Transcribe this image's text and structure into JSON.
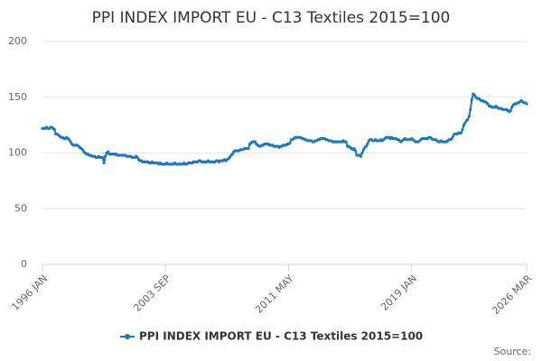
{
  "chart_data": {
    "type": "line",
    "title": "PPI INDEX IMPORT EU - C13 Textiles 2015=100",
    "source": "Source:",
    "categories": [
      "1996 JAN",
      null,
      null,
      null,
      null,
      null,
      null,
      null,
      null,
      null,
      null,
      null,
      null,
      null,
      null,
      null,
      null,
      null,
      null,
      null,
      null,
      null,
      null,
      null,
      null,
      null,
      null,
      null,
      null,
      null,
      null,
      null,
      null,
      null,
      null,
      null,
      null,
      null,
      null,
      null,
      null,
      null,
      null,
      null,
      null,
      null,
      null,
      null,
      null,
      null,
      null,
      null,
      null,
      null,
      null,
      null,
      null,
      null,
      null,
      null,
      null,
      null,
      null,
      null,
      null,
      null,
      null,
      null,
      null,
      null,
      null,
      null,
      null,
      null,
      null,
      null,
      null,
      null,
      null,
      null,
      null,
      null,
      null,
      null,
      null,
      null,
      null,
      null,
      null,
      null,
      null,
      null,
      "2003 SEP",
      null,
      null,
      null,
      null,
      null,
      null,
      null,
      null,
      null,
      null,
      null,
      null,
      null,
      null,
      null,
      null,
      null,
      null,
      null,
      null,
      null,
      null,
      null,
      null,
      null,
      null,
      null,
      null,
      null,
      null,
      null,
      null,
      null,
      null,
      null,
      null,
      null,
      null,
      null,
      null,
      null,
      null,
      null,
      null,
      null,
      null,
      null,
      null,
      null,
      null,
      null,
      null,
      null,
      null,
      null,
      null,
      null,
      null,
      null,
      null,
      null,
      null,
      null,
      null,
      null,
      null,
      null,
      null,
      null,
      null,
      null,
      null,
      null,
      null,
      null,
      null,
      null,
      null,
      null,
      null,
      null,
      null,
      null,
      null,
      null,
      null,
      null,
      null,
      null,
      null,
      null,
      "2011 MAY",
      null,
      null,
      null,
      null,
      null,
      null,
      null,
      null,
      null,
      null,
      null,
      null,
      null,
      null,
      null,
      null,
      null,
      null,
      null,
      null,
      null,
      null,
      null,
      null,
      null,
      null,
      null,
      null,
      null,
      null,
      null,
      null,
      null,
      null,
      null,
      null,
      null,
      null,
      null,
      null,
      null,
      null,
      null,
      null,
      null,
      null,
      null,
      null,
      null,
      null,
      null,
      null,
      null,
      null,
      null,
      null,
      null,
      null,
      null,
      null,
      null,
      null,
      null,
      null,
      null,
      null,
      null,
      null,
      null,
      null,
      null,
      null,
      null,
      null,
      null,
      null,
      null,
      null,
      null,
      null,
      null,
      null,
      null,
      null,
      null,
      null,
      null,
      null,
      null,
      null,
      null,
      "2019 JAN",
      null,
      null,
      null,
      null,
      null,
      null,
      null,
      null,
      null,
      null,
      null,
      null,
      null,
      null,
      null,
      null,
      null,
      null,
      null,
      null,
      null,
      null,
      null,
      null,
      null,
      null,
      null,
      null,
      null,
      null,
      null,
      null,
      null,
      null,
      null,
      null,
      null,
      null,
      null,
      null,
      null,
      null,
      null,
      null,
      null,
      null,
      null,
      null,
      null,
      null,
      null,
      null,
      null,
      null,
      null,
      null,
      null,
      null,
      null,
      null,
      null,
      null,
      null,
      null,
      null,
      null,
      null,
      null,
      null,
      null,
      null,
      null,
      null,
      null,
      null,
      null,
      null,
      null,
      null,
      null,
      null,
      null,
      null,
      null,
      null,
      "2026 MAR"
    ],
    "series": [
      {
        "name": "PPI INDEX IMPORT EU - C13 Textiles 2015=100",
        "color": "#1f78b8",
        "values": [
          122,
          122,
          122,
          123,
          122,
          122,
          123,
          123,
          122,
          121,
          117,
          117,
          116,
          115,
          114,
          114,
          113,
          113,
          114,
          113,
          112,
          110,
          108,
          107,
          107,
          107,
          107,
          106,
          105,
          104,
          103,
          101,
          100,
          99,
          99,
          98,
          98,
          97,
          97,
          97,
          96,
          96,
          97,
          96,
          96,
          96,
          91,
          97,
          100,
          101,
          99,
          99,
          99,
          99,
          99,
          99,
          98,
          98,
          98,
          98,
          98,
          98,
          98,
          97,
          97,
          97,
          97,
          96,
          96,
          96,
          97,
          96,
          94,
          93,
          93,
          92,
          92,
          92,
          92,
          92,
          91,
          91,
          92,
          91,
          91,
          91,
          91,
          90,
          91,
          90,
          90,
          90,
          90,
          91,
          90,
          90,
          90,
          90,
          90,
          91,
          90,
          90,
          90,
          90,
          90,
          90,
          91,
          90,
          90,
          91,
          91,
          91,
          91,
          92,
          92,
          92,
          92,
          93,
          93,
          92,
          92,
          92,
          92,
          92,
          93,
          92,
          92,
          92,
          92,
          92,
          93,
          93,
          92,
          93,
          93,
          93,
          94,
          93,
          94,
          95,
          96,
          98,
          99,
          101,
          102,
          102,
          102,
          102,
          103,
          103,
          103,
          104,
          104,
          104,
          104,
          108,
          109,
          110,
          110,
          110,
          108,
          107,
          106,
          106,
          107,
          107,
          108,
          108,
          108,
          108,
          107,
          107,
          107,
          106,
          106,
          106,
          106,
          105,
          106,
          106,
          107,
          107,
          107,
          108,
          108,
          109,
          112,
          112,
          113,
          114,
          114,
          114,
          114,
          114,
          113,
          113,
          112,
          112,
          111,
          111,
          111,
          111,
          110,
          110,
          111,
          111,
          112,
          112,
          113,
          113,
          113,
          113,
          112,
          112,
          111,
          111,
          111,
          110,
          110,
          110,
          110,
          110,
          110,
          110,
          110,
          111,
          110,
          110,
          106,
          106,
          105,
          104,
          103,
          104,
          102,
          98,
          98,
          98,
          97,
          100,
          103,
          105,
          106,
          108,
          111,
          112,
          112,
          111,
          111,
          112,
          111,
          111,
          111,
          112,
          111,
          112,
          113,
          114,
          114,
          114,
          113,
          114,
          113,
          113,
          113,
          112,
          112,
          111,
          110,
          111,
          112,
          113,
          112,
          112,
          112,
          112,
          113,
          112,
          111,
          110,
          110,
          110,
          111,
          112,
          113,
          113,
          113,
          113,
          113,
          114,
          114,
          113,
          112,
          112,
          112,
          111,
          110,
          110,
          111,
          110,
          110,
          110,
          110,
          111,
          112,
          112,
          113,
          115,
          117,
          117,
          117,
          118,
          118,
          118,
          121,
          125,
          127,
          129,
          130,
          133,
          139,
          148,
          153,
          152,
          150,
          149,
          149,
          148,
          147,
          147,
          146,
          146,
          145,
          144,
          142,
          142,
          141,
          141,
          141,
          142,
          141,
          140,
          140,
          140,
          139,
          139,
          139,
          139,
          138,
          137,
          138,
          141,
          143,
          144,
          144,
          145,
          145,
          146,
          147,
          146,
          145,
          145,
          144
        ]
      }
    ],
    "ylim": [
      0,
      200
    ],
    "yticks": [
      0,
      50,
      100,
      150,
      200
    ],
    "grid": true
  }
}
